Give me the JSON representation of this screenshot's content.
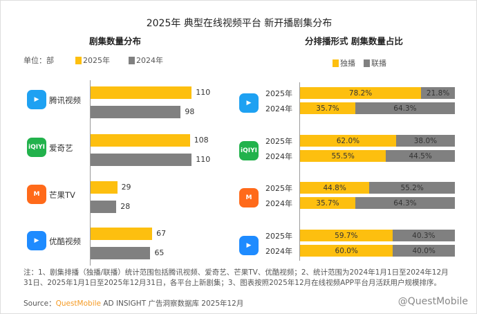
{
  "title": "2025年 典型在线视频平台 新开播剧集分布",
  "left_title": "剧集数量分布",
  "right_title": "分排播形式 剧集数量占比",
  "unit": "单位：部",
  "note": "注：1、剧集排播（独播/联播）统计范围包括腾讯视频、爱奇艺、芒果TV、优酷视频；2、统计范围为2024年1月1日至2024年12月31日、2025年1月1日至2025年12月31日，各平台上新剧集；3、图表按照2025年12月在线视频APP平台月活跃用户规模排序。",
  "source_prefix": "Source：",
  "source_brand": "QuestMobile",
  "source_rest": " AD INSIGHT 广告洞察数据库 2025年12月",
  "watermark": "@QuestMobile",
  "colors": {
    "y2025": "#FDBF0F",
    "y2024": "#808080",
    "brand": "#F59A23"
  },
  "chart_data": [
    {
      "type": "bar",
      "title": "剧集数量分布",
      "ylabel": "单位：部",
      "legend": [
        "2025年",
        "2024年"
      ],
      "categories": [
        "腾讯视频",
        "爱奇艺",
        "芒果TV",
        "优酷视频"
      ],
      "series": [
        {
          "name": "2025年",
          "values": [
            110,
            108,
            29,
            67
          ]
        },
        {
          "name": "2024年",
          "values": [
            98,
            110,
            28,
            65
          ]
        }
      ]
    },
    {
      "type": "bar",
      "title": "分排播形式 剧集数量占比",
      "stacked": true,
      "legend": [
        "独播",
        "联播"
      ],
      "categories": [
        "腾讯视频",
        "爱奇艺",
        "芒果TV",
        "优酷视频"
      ],
      "years": [
        "2025年",
        "2024年"
      ],
      "rows": [
        [
          {
            "exclusive": 78.2,
            "joint": 21.8
          },
          {
            "exclusive": 35.7,
            "joint": 64.3
          }
        ],
        [
          {
            "exclusive": 62.0,
            "joint": 38.0
          },
          {
            "exclusive": 55.5,
            "joint": 44.5
          }
        ],
        [
          {
            "exclusive": 44.8,
            "joint": 55.2
          },
          {
            "exclusive": 35.7,
            "joint": 64.3
          }
        ],
        [
          {
            "exclusive": 59.7,
            "joint": 40.3
          },
          {
            "exclusive": 60.0,
            "joint": 40.0
          }
        ]
      ]
    }
  ],
  "icons": [
    {
      "name": "tencent-video-icon",
      "text": "▶",
      "bg": "#1EA1F2"
    },
    {
      "name": "iqiyi-icon",
      "text": "iQIYI",
      "bg": "#22B24C"
    },
    {
      "name": "mgtv-icon",
      "text": "M",
      "bg": "#FF6A1A"
    },
    {
      "name": "youku-icon",
      "text": "▶",
      "bg": "#1E8BFF"
    }
  ]
}
